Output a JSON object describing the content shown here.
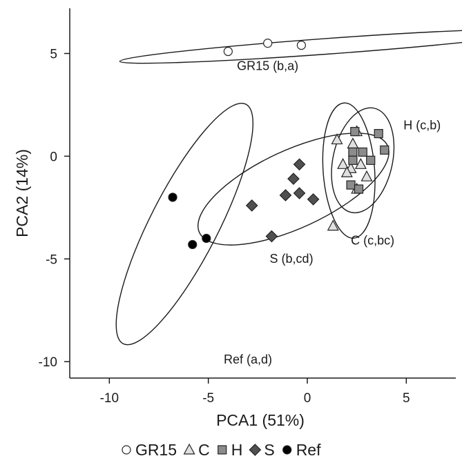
{
  "chart_data": {
    "type": "scatter",
    "title": "",
    "xlabel": "PCA1 (51%)",
    "ylabel": "PCA2 (14%)",
    "xlim": [
      -12,
      7.5
    ],
    "ylim": [
      -10.8,
      7.2
    ],
    "xticks": [
      -10,
      -5,
      0,
      5
    ],
    "yticks": [
      5,
      0,
      -5,
      -10
    ],
    "grid": false,
    "legend_position": "bottom",
    "series": [
      {
        "name": "GR15",
        "marker": "circle",
        "fill": "#ffffff",
        "points": [
          [
            -4.0,
            5.1
          ],
          [
            -2.0,
            5.5
          ],
          [
            -0.3,
            5.4
          ]
        ]
      },
      {
        "name": "C",
        "marker": "triangle",
        "fill": "#e0e0e0",
        "points": [
          [
            1.5,
            0.8
          ],
          [
            2.5,
            1.2
          ],
          [
            2.3,
            0.6
          ],
          [
            1.8,
            -0.4
          ],
          [
            2.2,
            -0.6
          ],
          [
            2.7,
            -0.4
          ],
          [
            2.0,
            -0.8
          ],
          [
            3.0,
            -1.0
          ],
          [
            2.5,
            -1.6
          ],
          [
            1.3,
            -3.4
          ]
        ]
      },
      {
        "name": "H",
        "marker": "square",
        "fill": "#8c8c8c",
        "points": [
          [
            2.4,
            1.2
          ],
          [
            3.6,
            1.1
          ],
          [
            2.3,
            0.2
          ],
          [
            2.8,
            0.2
          ],
          [
            3.9,
            0.3
          ],
          [
            2.3,
            -0.2
          ],
          [
            3.2,
            -0.2
          ],
          [
            2.2,
            -1.4
          ],
          [
            2.6,
            -1.6
          ]
        ]
      },
      {
        "name": "S",
        "marker": "diamond",
        "fill": "#505050",
        "points": [
          [
            -0.4,
            -0.4
          ],
          [
            -0.7,
            -1.1
          ],
          [
            -1.1,
            -1.9
          ],
          [
            -0.4,
            -1.8
          ],
          [
            0.3,
            -2.1
          ],
          [
            -2.8,
            -2.4
          ],
          [
            -1.8,
            -3.9
          ]
        ]
      },
      {
        "name": "Ref",
        "marker": "circle",
        "fill": "#000000",
        "points": [
          [
            -6.8,
            -2.0
          ],
          [
            -5.8,
            -4.3
          ],
          [
            -5.1,
            -4.0
          ]
        ]
      }
    ],
    "ellipses": [
      {
        "group": "GR15",
        "cx": 1.0,
        "cy": 5.35,
        "rx": 10.5,
        "ry": 0.38,
        "angle_deg": 4.0
      },
      {
        "group": "H",
        "cx": 2.8,
        "cy": -0.2,
        "rx": 1.5,
        "ry": 2.6,
        "angle_deg": -12.0
      },
      {
        "group": "C",
        "cx": 2.1,
        "cy": -0.7,
        "rx": 1.3,
        "ry": 3.3,
        "angle_deg": 4.0
      },
      {
        "group": "S",
        "cx": -0.7,
        "cy": -1.6,
        "rx": 5.2,
        "ry": 1.9,
        "angle_deg": 24.0
      },
      {
        "group": "Ref",
        "cx": -6.2,
        "cy": -3.3,
        "rx": 6.6,
        "ry": 1.7,
        "angle_deg": 62.0
      }
    ],
    "annotations": [
      {
        "text": "GR15 (b,a)",
        "x": -2.0,
        "y": 4.2
      },
      {
        "text": "H (c,b)",
        "x": 5.8,
        "y": 1.3
      },
      {
        "text": "C (c,bc)",
        "x": 3.3,
        "y": -4.3
      },
      {
        "text": "S (b,cd)",
        "x": -0.8,
        "y": -5.2
      },
      {
        "text": "Ref (a,d)",
        "x": -3.0,
        "y": -10.1
      }
    ],
    "legend": [
      "GR15",
      "C",
      "H",
      "S",
      "Ref"
    ]
  }
}
